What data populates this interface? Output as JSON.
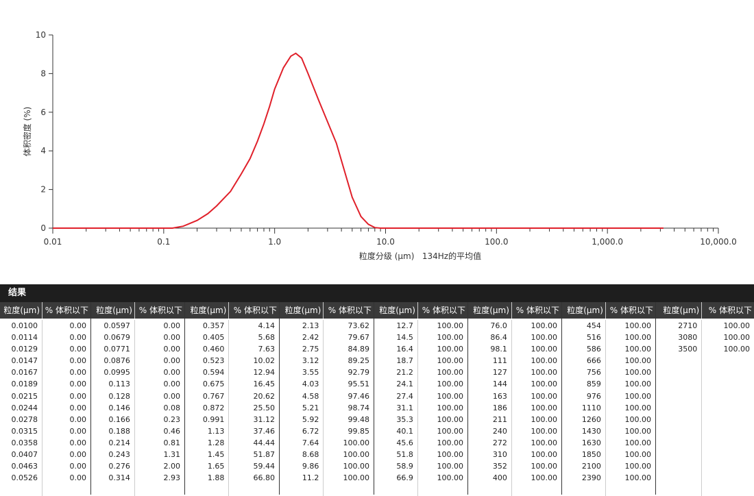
{
  "chart_data": {
    "type": "line",
    "xscale": "log",
    "ylabel": "体积密度 (%)",
    "xlabel": "粒度分级 (µm)   134Hz的平均值",
    "x": [
      0.01,
      0.12,
      0.15,
      0.2,
      0.25,
      0.3,
      0.4,
      0.5,
      0.6,
      0.7,
      0.8,
      0.9,
      1.0,
      1.2,
      1.4,
      1.55,
      1.75,
      2.0,
      2.5,
      3.0,
      3.6,
      4.0,
      5.0,
      6.0,
      7.0,
      8.0,
      9.0,
      3200
    ],
    "values": [
      0,
      0,
      0.1,
      0.4,
      0.75,
      1.15,
      1.9,
      2.8,
      3.6,
      4.5,
      5.4,
      6.3,
      7.2,
      8.3,
      8.9,
      9.05,
      8.8,
      8.0,
      6.6,
      5.5,
      4.4,
      3.5,
      1.6,
      0.6,
      0.2,
      0.03,
      0,
      0
    ],
    "color": "#e0202a",
    "xlim": [
      0.01,
      10000
    ],
    "xticks": [
      {
        "value": 0.01,
        "label": "0.01"
      },
      0.1,
      {
        "value": 1,
        "label": "1.0"
      },
      {
        "value": 10,
        "label": "10.0"
      },
      {
        "value": 100,
        "label": "100.0"
      },
      {
        "value": 1000,
        "label": "1,000.0"
      },
      {
        "value": 10000,
        "label": "10,000.0"
      }
    ],
    "ylim": [
      0,
      10
    ],
    "yticks": [
      0,
      2,
      4,
      6,
      8,
      10
    ],
    "grid": false
  },
  "table": {
    "title": "结果",
    "header": [
      "粒度(µm)",
      "% 体积以下"
    ],
    "groups": [
      [
        [
          "0.0100",
          "0.00"
        ],
        [
          "0.0114",
          "0.00"
        ],
        [
          "0.0129",
          "0.00"
        ],
        [
          "0.0147",
          "0.00"
        ],
        [
          "0.0167",
          "0.00"
        ],
        [
          "0.0189",
          "0.00"
        ],
        [
          "0.0215",
          "0.00"
        ],
        [
          "0.0244",
          "0.00"
        ],
        [
          "0.0278",
          "0.00"
        ],
        [
          "0.0315",
          "0.00"
        ],
        [
          "0.0358",
          "0.00"
        ],
        [
          "0.0407",
          "0.00"
        ],
        [
          "0.0463",
          "0.00"
        ],
        [
          "0.0526",
          "0.00"
        ]
      ],
      [
        [
          "0.0597",
          "0.00"
        ],
        [
          "0.0679",
          "0.00"
        ],
        [
          "0.0771",
          "0.00"
        ],
        [
          "0.0876",
          "0.00"
        ],
        [
          "0.0995",
          "0.00"
        ],
        [
          "0.113",
          "0.00"
        ],
        [
          "0.128",
          "0.00"
        ],
        [
          "0.146",
          "0.08"
        ],
        [
          "0.166",
          "0.23"
        ],
        [
          "0.188",
          "0.46"
        ],
        [
          "0.214",
          "0.81"
        ],
        [
          "0.243",
          "1.31"
        ],
        [
          "0.276",
          "2.00"
        ],
        [
          "0.314",
          "2.93"
        ]
      ],
      [
        [
          "0.357",
          "4.14"
        ],
        [
          "0.405",
          "5.68"
        ],
        [
          "0.460",
          "7.63"
        ],
        [
          "0.523",
          "10.02"
        ],
        [
          "0.594",
          "12.94"
        ],
        [
          "0.675",
          "16.45"
        ],
        [
          "0.767",
          "20.62"
        ],
        [
          "0.872",
          "25.50"
        ],
        [
          "0.991",
          "31.12"
        ],
        [
          "1.13",
          "37.46"
        ],
        [
          "1.28",
          "44.44"
        ],
        [
          "1.45",
          "51.87"
        ],
        [
          "1.65",
          "59.44"
        ],
        [
          "1.88",
          "66.80"
        ]
      ],
      [
        [
          "2.13",
          "73.62"
        ],
        [
          "2.42",
          "79.67"
        ],
        [
          "2.75",
          "84.89"
        ],
        [
          "3.12",
          "89.25"
        ],
        [
          "3.55",
          "92.79"
        ],
        [
          "4.03",
          "95.51"
        ],
        [
          "4.58",
          "97.46"
        ],
        [
          "5.21",
          "98.74"
        ],
        [
          "5.92",
          "99.48"
        ],
        [
          "6.72",
          "99.85"
        ],
        [
          "7.64",
          "100.00"
        ],
        [
          "8.68",
          "100.00"
        ],
        [
          "9.86",
          "100.00"
        ],
        [
          "11.2",
          "100.00"
        ]
      ],
      [
        [
          "12.7",
          "100.00"
        ],
        [
          "14.5",
          "100.00"
        ],
        [
          "16.4",
          "100.00"
        ],
        [
          "18.7",
          "100.00"
        ],
        [
          "21.2",
          "100.00"
        ],
        [
          "24.1",
          "100.00"
        ],
        [
          "27.4",
          "100.00"
        ],
        [
          "31.1",
          "100.00"
        ],
        [
          "35.3",
          "100.00"
        ],
        [
          "40.1",
          "100.00"
        ],
        [
          "45.6",
          "100.00"
        ],
        [
          "51.8",
          "100.00"
        ],
        [
          "58.9",
          "100.00"
        ],
        [
          "66.9",
          "100.00"
        ]
      ],
      [
        [
          "76.0",
          "100.00"
        ],
        [
          "86.4",
          "100.00"
        ],
        [
          "98.1",
          "100.00"
        ],
        [
          "111",
          "100.00"
        ],
        [
          "127",
          "100.00"
        ],
        [
          "144",
          "100.00"
        ],
        [
          "163",
          "100.00"
        ],
        [
          "186",
          "100.00"
        ],
        [
          "211",
          "100.00"
        ],
        [
          "240",
          "100.00"
        ],
        [
          "272",
          "100.00"
        ],
        [
          "310",
          "100.00"
        ],
        [
          "352",
          "100.00"
        ],
        [
          "400",
          "100.00"
        ]
      ],
      [
        [
          "454",
          "100.00"
        ],
        [
          "516",
          "100.00"
        ],
        [
          "586",
          "100.00"
        ],
        [
          "666",
          "100.00"
        ],
        [
          "756",
          "100.00"
        ],
        [
          "859",
          "100.00"
        ],
        [
          "976",
          "100.00"
        ],
        [
          "1110",
          "100.00"
        ],
        [
          "1260",
          "100.00"
        ],
        [
          "1430",
          "100.00"
        ],
        [
          "1630",
          "100.00"
        ],
        [
          "1850",
          "100.00"
        ],
        [
          "2100",
          "100.00"
        ],
        [
          "2390",
          "100.00"
        ]
      ],
      [
        [
          "2710",
          "100.00"
        ],
        [
          "3080",
          "100.00"
        ],
        [
          "3500",
          "100.00"
        ]
      ]
    ]
  }
}
